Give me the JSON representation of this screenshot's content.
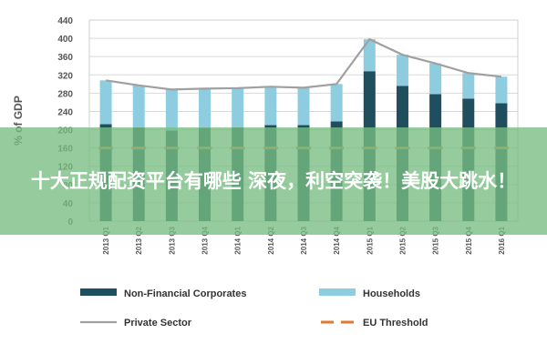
{
  "chart_data": {
    "type": "bar",
    "stacked": true,
    "ylabel": "% of GDP",
    "ylim": [
      0,
      440
    ],
    "yticks": [
      0,
      40,
      80,
      120,
      160,
      200,
      240,
      280,
      320,
      360,
      400,
      440
    ],
    "categories": [
      "2013 Q1",
      "2013 Q2",
      "2013 Q3",
      "2013 Q4",
      "2014 Q1",
      "2014 Q2",
      "2014 Q3",
      "2014 Q4",
      "2015 Q1",
      "2015 Q2",
      "2015 Q3",
      "2015 Q4",
      "2016 Q1"
    ],
    "series": [
      {
        "name": "Non-Financial Corporates",
        "type": "bar",
        "color": "#1f4e5f",
        "values": [
          212,
          205,
          198,
          204,
          205,
          210,
          210,
          218,
          328,
          296,
          278,
          268,
          258
        ]
      },
      {
        "name": "Households",
        "type": "bar",
        "color": "#8ecde0",
        "values": [
          96,
          92,
          90,
          86,
          86,
          84,
          82,
          82,
          70,
          68,
          67,
          56,
          58
        ]
      },
      {
        "name": "Private Sector",
        "type": "line",
        "color": "#a0a0a0",
        "values": [
          308,
          297,
          288,
          290,
          291,
          294,
          292,
          300,
          398,
          364,
          345,
          324,
          316
        ]
      },
      {
        "name": "EU Threshold",
        "type": "dashed-line",
        "color": "#e07a2f",
        "values": [
          160,
          160,
          160,
          160,
          160,
          160,
          160,
          160,
          160,
          160,
          160,
          160,
          160
        ]
      }
    ],
    "legend": "bottom",
    "grid": true
  },
  "overlay": {
    "text": "十大正规配资平台有哪些 深夜，利空突袭！美股大跳水！"
  }
}
